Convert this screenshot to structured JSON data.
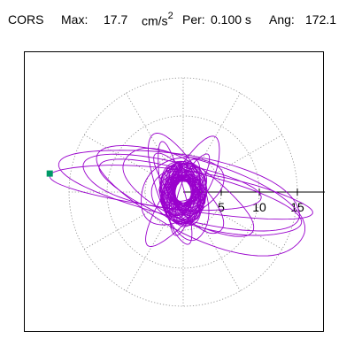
{
  "header": {
    "station": "CORS",
    "max_label": "Max:",
    "max_value": "17.7",
    "max_unit": "cm/s",
    "max_unit_exp": "2",
    "period_label": "Per:",
    "period_value": "0.100 s",
    "angle_label": "Ang:",
    "angle_value": "172.1"
  },
  "chart_data": {
    "type": "polar-orbit",
    "rings": [
      5,
      10,
      15
    ],
    "radial_divisions_deg": 30,
    "tick_labels": [
      "5",
      "10",
      "15"
    ],
    "axis_max": 17.7,
    "grid": true,
    "series_color": "#9900cc",
    "marker_color": "#009966",
    "max_point": {
      "radius": 17.7,
      "angle_deg": 172.1
    },
    "orbits": [
      {
        "a": 17.2,
        "b": 2.6,
        "rot_deg": 172,
        "cx": -0.2,
        "cy": 0.1
      },
      {
        "a": 16.1,
        "b": 4.2,
        "rot_deg": 168,
        "cx": 0.3,
        "cy": 0.5
      },
      {
        "a": 14.5,
        "b": 5.0,
        "rot_deg": 158,
        "cx": 2.8,
        "cy": -1.1
      },
      {
        "a": 13.6,
        "b": 3.4,
        "rot_deg": 164,
        "cx": 2.2,
        "cy": -0.9
      },
      {
        "a": 11.8,
        "b": 3.1,
        "rot_deg": 170,
        "cx": -2.0,
        "cy": 1.1
      },
      {
        "a": 9.6,
        "b": 3.6,
        "rot_deg": 150,
        "cx": 0.4,
        "cy": 0.0
      },
      {
        "a": 8.3,
        "b": 2.4,
        "rot_deg": 58,
        "cx": 0.2,
        "cy": 0.0
      },
      {
        "a": 7.4,
        "b": 3.0,
        "rot_deg": 112,
        "cx": -0.6,
        "cy": 0.6
      },
      {
        "a": 6.6,
        "b": 2.1,
        "rot_deg": 130,
        "cx": 0.8,
        "cy": -0.4
      },
      {
        "a": 5.8,
        "b": 3.9,
        "rot_deg": 28,
        "cx": -0.4,
        "cy": 0.3
      },
      {
        "a": 5.1,
        "b": 1.6,
        "rot_deg": 76,
        "cx": 0.1,
        "cy": -0.5
      },
      {
        "a": 4.3,
        "b": 2.6,
        "rot_deg": 96,
        "cx": -0.2,
        "cy": 0.0
      },
      {
        "a": 3.5,
        "b": 1.9,
        "rot_deg": 40,
        "cx": 0.3,
        "cy": 0.4
      },
      {
        "a": 2.8,
        "b": 1.8,
        "rot_deg": 140,
        "cx": -0.3,
        "cy": -0.2
      },
      {
        "a": 2.1,
        "b": 1.3,
        "rot_deg": 10,
        "cx": 0.1,
        "cy": 0.2
      },
      {
        "a": 6.9,
        "b": 1.5,
        "rot_deg": 104,
        "cx": -1.2,
        "cy": -0.4
      },
      {
        "a": 4.6,
        "b": 1.2,
        "rot_deg": 65,
        "cx": 1.1,
        "cy": 0.9
      },
      {
        "a": 3.9,
        "b": 2.9,
        "rot_deg": 122,
        "cx": -0.8,
        "cy": -0.7
      }
    ]
  }
}
